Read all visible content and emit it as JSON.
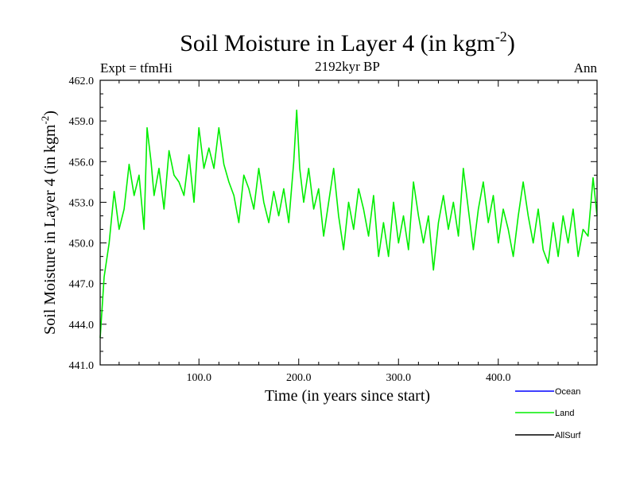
{
  "chart_data": {
    "type": "line",
    "title": "Soil Moisture in Layer 4 (in kgm",
    "title_sup": "-2",
    "title_close": ")",
    "subtitle": "2192kyr BP",
    "left_label": "Expt = tfmHi",
    "right_label": "Ann",
    "xlabel": "Time (in years since start)",
    "ylabel": "Soil Moisture in Layer 4 (in kgm",
    "ylabel_sup": "-2",
    "ylabel_close": ")",
    "xlim": [
      1,
      499
    ],
    "ylim": [
      441.0,
      462.0
    ],
    "xticks": [
      {
        "value": 100,
        "label": "100.0"
      },
      {
        "value": 200,
        "label": "200.0"
      },
      {
        "value": 300,
        "label": "300.0"
      },
      {
        "value": 400,
        "label": "400.0"
      }
    ],
    "yticks": [
      {
        "value": 441,
        "label": "441.0"
      },
      {
        "value": 444,
        "label": "444.0"
      },
      {
        "value": 447,
        "label": "447.0"
      },
      {
        "value": 450,
        "label": "450.0"
      },
      {
        "value": 453,
        "label": "453.0"
      },
      {
        "value": 456,
        "label": "456.0"
      },
      {
        "value": 459,
        "label": "459.0"
      },
      {
        "value": 462,
        "label": "462.0"
      }
    ],
    "legend": [
      {
        "name": "Ocean",
        "color": "#0000ff"
      },
      {
        "name": "Land",
        "color": "#00ee00"
      },
      {
        "name": "AllSurf",
        "color": "#000000"
      }
    ],
    "series": [
      {
        "name": "Land",
        "color": "#00ee00",
        "x": [
          1,
          5,
          10,
          15,
          20,
          25,
          30,
          35,
          40,
          45,
          48,
          52,
          55,
          60,
          65,
          70,
          75,
          80,
          85,
          90,
          95,
          100,
          105,
          110,
          115,
          120,
          125,
          130,
          135,
          140,
          145,
          150,
          155,
          160,
          165,
          170,
          175,
          180,
          185,
          190,
          195,
          198,
          201,
          205,
          210,
          215,
          220,
          225,
          230,
          235,
          240,
          245,
          250,
          255,
          260,
          265,
          270,
          275,
          280,
          285,
          290,
          295,
          300,
          305,
          310,
          315,
          320,
          325,
          330,
          335,
          340,
          345,
          350,
          355,
          360,
          365,
          370,
          375,
          380,
          385,
          390,
          395,
          400,
          405,
          410,
          415,
          420,
          425,
          430,
          435,
          440,
          445,
          450,
          455,
          460,
          465,
          470,
          475,
          480,
          485,
          490,
          495,
          499
        ],
        "values": [
          443.0,
          447.5,
          450.0,
          453.8,
          451.0,
          452.5,
          455.8,
          453.5,
          455.0,
          451.0,
          458.5,
          456.0,
          453.5,
          455.5,
          452.5,
          456.8,
          455.0,
          454.5,
          453.5,
          456.5,
          453.0,
          458.5,
          455.5,
          457.0,
          455.5,
          458.5,
          455.8,
          454.5,
          453.5,
          451.5,
          455.0,
          454.0,
          452.5,
          455.5,
          453.0,
          451.5,
          453.8,
          452.0,
          454.0,
          451.5,
          456.0,
          459.8,
          455.5,
          453.0,
          455.5,
          452.5,
          454.0,
          450.5,
          453.0,
          455.5,
          452.0,
          449.5,
          453.0,
          451.0,
          454.0,
          452.5,
          450.5,
          453.5,
          449.0,
          451.5,
          449.0,
          453.0,
          450.0,
          452.0,
          449.5,
          454.5,
          452.0,
          450.0,
          452.0,
          448.0,
          451.5,
          453.5,
          451.0,
          453.0,
          450.5,
          455.5,
          452.5,
          449.5,
          452.5,
          454.5,
          451.5,
          453.5,
          450.0,
          452.5,
          451.0,
          449.0,
          452.0,
          454.5,
          452.0,
          450.0,
          452.5,
          449.5,
          448.5,
          451.5,
          449.0,
          452.0,
          450.0,
          452.5,
          449.0,
          451.0,
          450.5,
          454.8,
          452.0
        ]
      }
    ]
  }
}
